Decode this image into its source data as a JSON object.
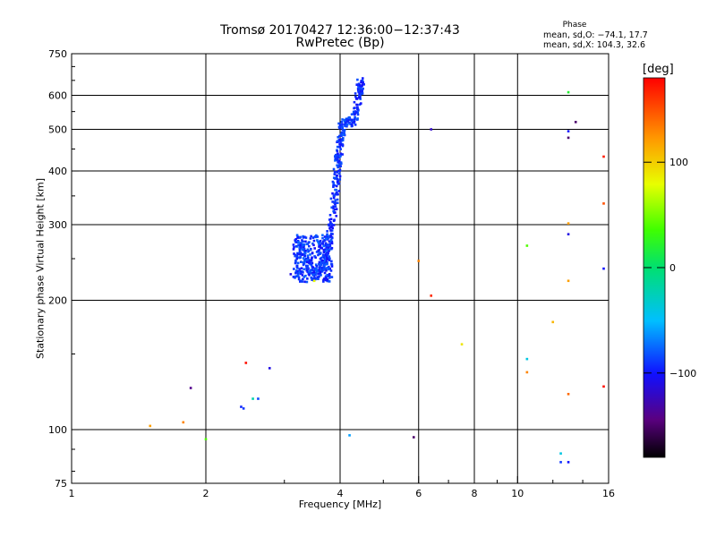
{
  "chart_data": {
    "type": "scatter",
    "title": "Tromsø 20170427 12:36:00−12:37:43",
    "subtitle": "RwPretec (Bp)",
    "xlabel": "Frequency [MHz]",
    "ylabel": "Stationary phase Virtual Height [km]",
    "x_scale": "log",
    "y_scale": "log",
    "xlim": [
      1,
      16
    ],
    "ylim": [
      75,
      750
    ],
    "x_ticks": [
      1,
      2,
      4,
      6,
      8,
      10,
      16
    ],
    "x_tick_labels": [
      "1",
      "2",
      "4",
      "6",
      "8",
      "10",
      "16"
    ],
    "y_ticks": [
      75,
      100,
      200,
      300,
      400,
      500,
      600,
      750
    ],
    "y_tick_labels": [
      "75",
      "100",
      "200",
      "300",
      "400",
      "500",
      "600",
      "750"
    ],
    "grid": true,
    "phase_legend": {
      "title": "Phase",
      "mean_sd_O": "mean, sd,O: −74.1, 17.7",
      "mean_sd_X": "mean, sd,X: 104.3, 32.6"
    },
    "colorbar": {
      "label": "[deg]",
      "ticks": [
        100,
        0,
        -100
      ],
      "tick_labels": [
        "100",
        "0",
        "−100"
      ],
      "range": [
        -180,
        180
      ],
      "colormap": "rainbow"
    },
    "trace": {
      "description_points": [
        {
          "x": 3.2,
          "y": 222,
          "phase": -90
        },
        {
          "x": 3.2,
          "y": 275,
          "phase": -90
        },
        {
          "x": 3.5,
          "y": 228,
          "phase": -85
        },
        {
          "x": 3.7,
          "y": 250,
          "phase": -90
        },
        {
          "x": 3.8,
          "y": 290,
          "phase": -95
        },
        {
          "x": 3.9,
          "y": 350,
          "phase": -90
        },
        {
          "x": 3.95,
          "y": 410,
          "phase": -90
        },
        {
          "x": 4.0,
          "y": 460,
          "phase": -90
        },
        {
          "x": 4.05,
          "y": 520,
          "phase": -85
        },
        {
          "x": 4.3,
          "y": 520,
          "phase": -90
        },
        {
          "x": 4.4,
          "y": 600,
          "phase": -95
        },
        {
          "x": 4.45,
          "y": 650,
          "phase": -95
        }
      ]
    },
    "scattered_points": [
      {
        "x": 1.5,
        "y": 102,
        "phase": 120
      },
      {
        "x": 1.78,
        "y": 104,
        "phase": 130
      },
      {
        "x": 1.85,
        "y": 125,
        "phase": -140
      },
      {
        "x": 2.0,
        "y": 95,
        "phase": 40
      },
      {
        "x": 2.4,
        "y": 113,
        "phase": -95
      },
      {
        "x": 2.43,
        "y": 112,
        "phase": -90
      },
      {
        "x": 2.46,
        "y": 143,
        "phase": 175
      },
      {
        "x": 2.55,
        "y": 118,
        "phase": -20
      },
      {
        "x": 2.62,
        "y": 118,
        "phase": -85
      },
      {
        "x": 2.78,
        "y": 139,
        "phase": -110
      },
      {
        "x": 3.1,
        "y": 230,
        "phase": -110
      },
      {
        "x": 3.5,
        "y": 222,
        "phase": 80
      },
      {
        "x": 4.2,
        "y": 97,
        "phase": -60
      },
      {
        "x": 5.85,
        "y": 96,
        "phase": -150
      },
      {
        "x": 6.0,
        "y": 247,
        "phase": 130
      },
      {
        "x": 6.4,
        "y": 205,
        "phase": 165
      },
      {
        "x": 6.4,
        "y": 500,
        "phase": -120
      },
      {
        "x": 7.5,
        "y": 158,
        "phase": 90
      },
      {
        "x": 10.5,
        "y": 268,
        "phase": 40
      },
      {
        "x": 10.5,
        "y": 146,
        "phase": -40
      },
      {
        "x": 10.5,
        "y": 136,
        "phase": 130
      },
      {
        "x": 12.0,
        "y": 178,
        "phase": 110
      },
      {
        "x": 12.5,
        "y": 88,
        "phase": -40
      },
      {
        "x": 12.5,
        "y": 84,
        "phase": -90
      },
      {
        "x": 13.0,
        "y": 84,
        "phase": -100
      },
      {
        "x": 13.0,
        "y": 610,
        "phase": 20
      },
      {
        "x": 13.0,
        "y": 495,
        "phase": -100
      },
      {
        "x": 13.0,
        "y": 478,
        "phase": -150
      },
      {
        "x": 13.0,
        "y": 302,
        "phase": 120
      },
      {
        "x": 13.0,
        "y": 285,
        "phase": -110
      },
      {
        "x": 13.0,
        "y": 222,
        "phase": 120
      },
      {
        "x": 13.0,
        "y": 121,
        "phase": 140
      },
      {
        "x": 13.5,
        "y": 520,
        "phase": -150
      },
      {
        "x": 15.6,
        "y": 432,
        "phase": 170
      },
      {
        "x": 15.6,
        "y": 336,
        "phase": 150
      },
      {
        "x": 15.6,
        "y": 237,
        "phase": -100
      },
      {
        "x": 15.6,
        "y": 126,
        "phase": 175
      }
    ]
  }
}
